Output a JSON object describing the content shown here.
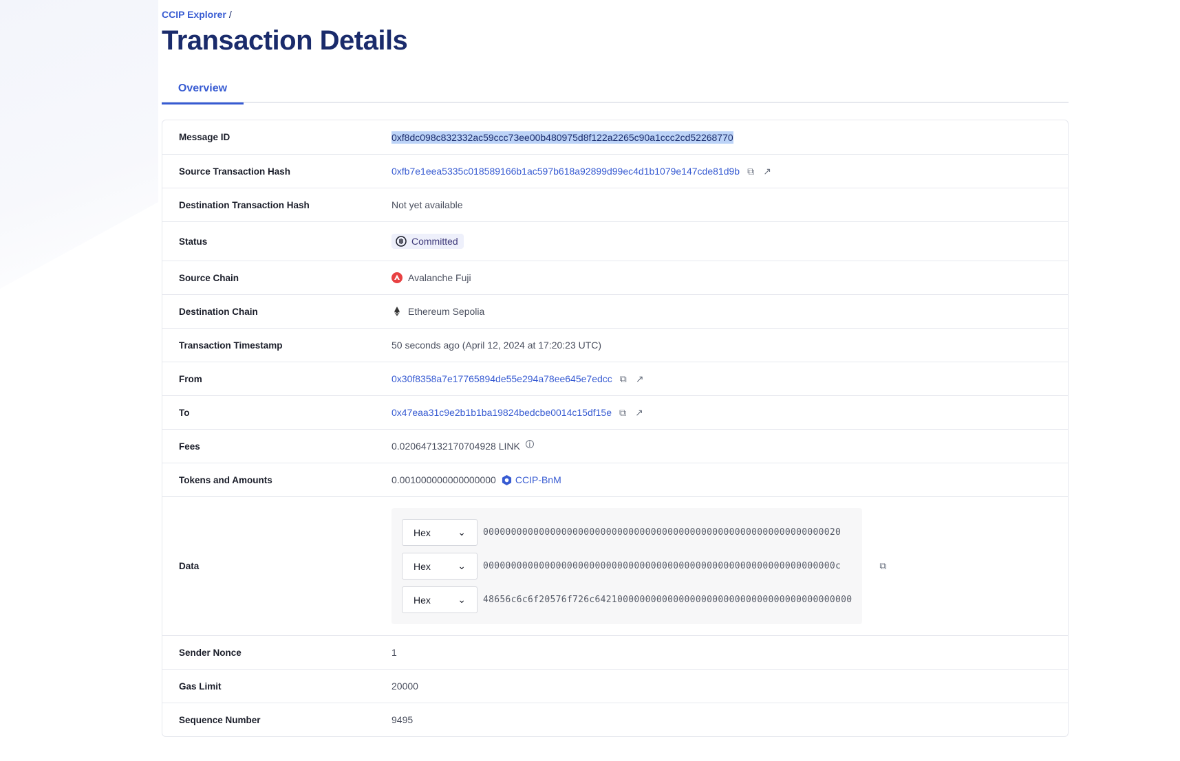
{
  "breadcrumb": {
    "root": "CCIP Explorer",
    "separator": "/"
  },
  "page_title": "Transaction Details",
  "tabs": [
    {
      "label": "Overview",
      "active": true
    }
  ],
  "colors": {
    "accent": "#375bd2",
    "title": "#1a2b6b",
    "status_bg": "#eef0fb"
  },
  "details": {
    "message_id": {
      "label": "Message ID",
      "value": "0xf8dc098c832332ac59ccc73ee00b480975d8f122a2265c90a1ccc2cd52268770"
    },
    "source_tx": {
      "label": "Source Transaction Hash",
      "value": "0xfb7e1eea5335c018589166b1ac597b618a92899d99ec4d1b1079e147cde81d9b"
    },
    "dest_tx": {
      "label": "Destination Transaction Hash",
      "value": "Not yet available"
    },
    "status": {
      "label": "Status",
      "value": "Committed",
      "icon": "pause-circle-icon"
    },
    "source_chain": {
      "label": "Source Chain",
      "value": "Avalanche Fuji",
      "icon": "avalanche-icon"
    },
    "dest_chain": {
      "label": "Destination Chain",
      "value": "Ethereum Sepolia",
      "icon": "ethereum-icon"
    },
    "timestamp": {
      "label": "Transaction Timestamp",
      "value": "50 seconds ago (April 12, 2024 at 17:20:23 UTC)"
    },
    "from": {
      "label": "From",
      "value": "0x30f8358a7e17765894de55e294a78ee645e7edcc"
    },
    "to": {
      "label": "To",
      "value": "0x47eaa31c9e2b1b1ba19824bedcbe0014c15df15e"
    },
    "fees": {
      "label": "Fees",
      "value": "0.020647132170704928 LINK"
    },
    "tokens": {
      "label": "Tokens and Amounts",
      "amount": "0.001000000000000000",
      "token": "CCIP-BnM"
    },
    "data": {
      "label": "Data",
      "rows": [
        {
          "format": "Hex",
          "value": "0000000000000000000000000000000000000000000000000000000000000020"
        },
        {
          "format": "Hex",
          "value": "000000000000000000000000000000000000000000000000000000000000000c"
        },
        {
          "format": "Hex",
          "value": "48656c6c6f20576f726c6421000000000000000000000000000000000000000000"
        }
      ]
    },
    "nonce": {
      "label": "Sender Nonce",
      "value": "1"
    },
    "gas": {
      "label": "Gas Limit",
      "value": "20000"
    },
    "sequence": {
      "label": "Sequence Number",
      "value": "9495"
    }
  }
}
